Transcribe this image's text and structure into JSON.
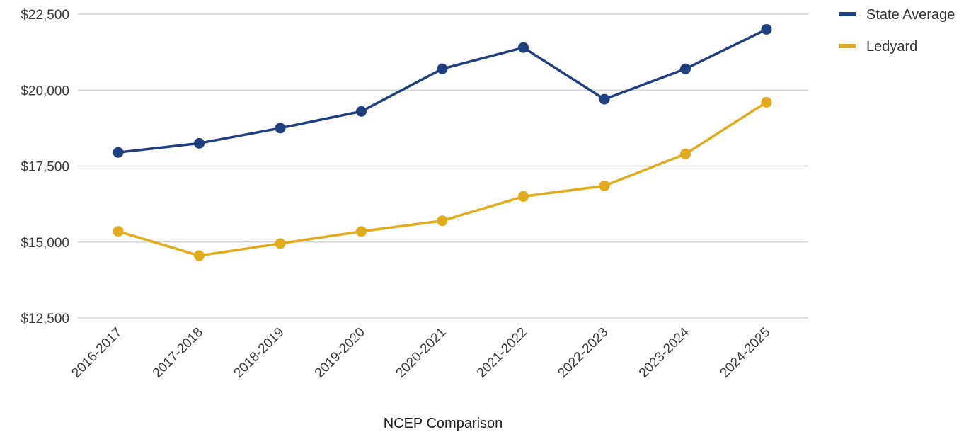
{
  "chart_data": {
    "type": "line",
    "title": "",
    "xlabel": "NCEP Comparison",
    "ylabel": "",
    "categories": [
      "2016-2017",
      "2017-2018",
      "2018-2019",
      "2019-2020",
      "2020-2021",
      "2021-2022",
      "2022-2023",
      "2023-2024",
      "2024-2025"
    ],
    "y_ticks": [
      "$12,500",
      "$15,000",
      "$17,500",
      "$20,000",
      "$22,500"
    ],
    "y_tick_values": [
      12500,
      15000,
      17500,
      20000,
      22500
    ],
    "ylim": [
      12500,
      22500
    ],
    "grid": true,
    "legend_position": "top-right",
    "series": [
      {
        "name": "State Average",
        "color": "#1f3f7f",
        "values": [
          17950,
          18250,
          18750,
          19300,
          20700,
          21400,
          19700,
          20700,
          22000
        ]
      },
      {
        "name": "Ledyard",
        "color": "#e0ab1c",
        "values": [
          15350,
          14550,
          14950,
          15350,
          15700,
          16500,
          16850,
          17900,
          19600
        ]
      }
    ]
  }
}
